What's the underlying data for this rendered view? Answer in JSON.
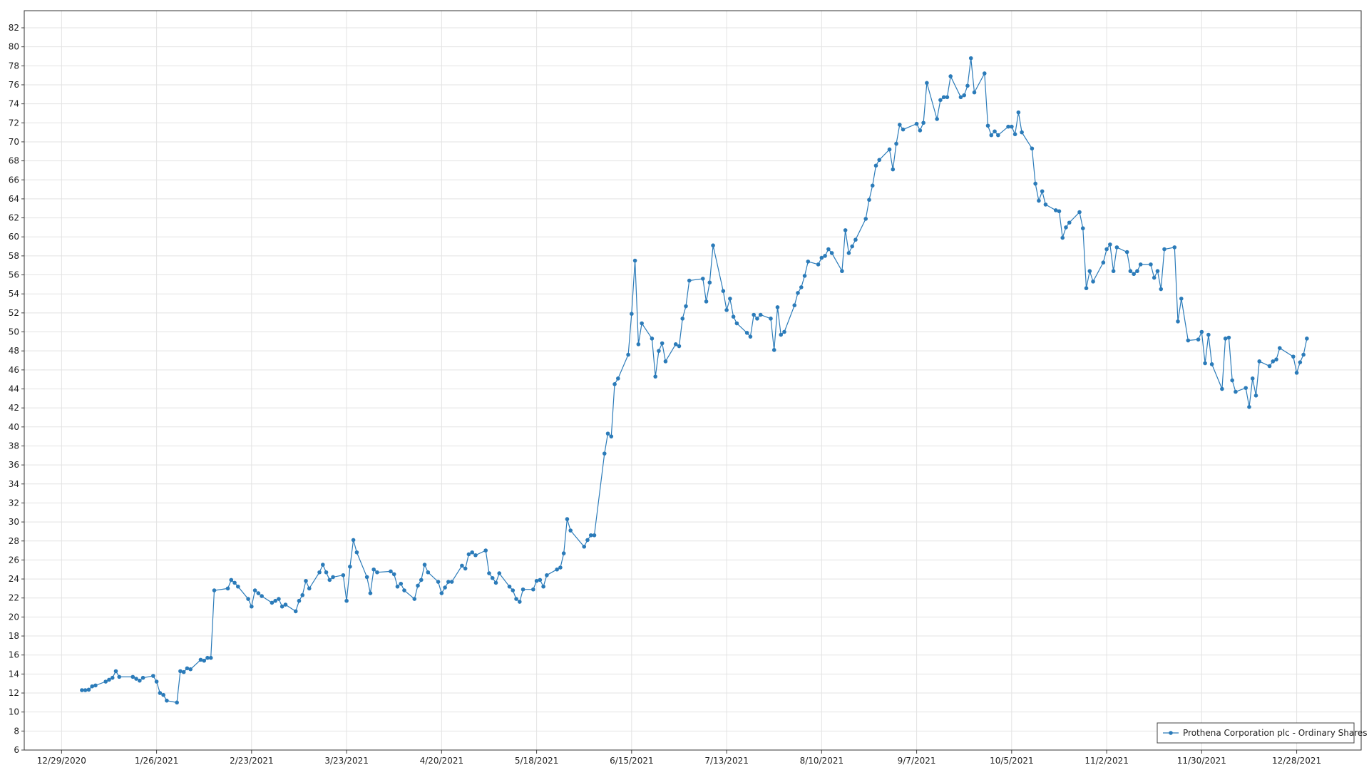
{
  "chart_data": {
    "type": "line",
    "x": [
      "2021-01-04",
      "2021-01-05",
      "2021-01-06",
      "2021-01-07",
      "2021-01-08",
      "2021-01-11",
      "2021-01-12",
      "2021-01-13",
      "2021-01-14",
      "2021-01-15",
      "2021-01-19",
      "2021-01-20",
      "2021-01-21",
      "2021-01-22",
      "2021-01-25",
      "2021-01-26",
      "2021-01-27",
      "2021-01-28",
      "2021-01-29",
      "2021-02-01",
      "2021-02-02",
      "2021-02-03",
      "2021-02-04",
      "2021-02-05",
      "2021-02-08",
      "2021-02-09",
      "2021-02-10",
      "2021-02-11",
      "2021-02-12",
      "2021-02-16",
      "2021-02-17",
      "2021-02-18",
      "2021-02-19",
      "2021-02-22",
      "2021-02-23",
      "2021-02-24",
      "2021-02-25",
      "2021-02-26",
      "2021-03-01",
      "2021-03-02",
      "2021-03-03",
      "2021-03-04",
      "2021-03-05",
      "2021-03-08",
      "2021-03-09",
      "2021-03-10",
      "2021-03-11",
      "2021-03-12",
      "2021-03-15",
      "2021-03-16",
      "2021-03-17",
      "2021-03-18",
      "2021-03-19",
      "2021-03-22",
      "2021-03-23",
      "2021-03-24",
      "2021-03-25",
      "2021-03-26",
      "2021-03-29",
      "2021-03-30",
      "2021-03-31",
      "2021-04-01",
      "2021-04-05",
      "2021-04-06",
      "2021-04-07",
      "2021-04-08",
      "2021-04-09",
      "2021-04-12",
      "2021-04-13",
      "2021-04-14",
      "2021-04-15",
      "2021-04-16",
      "2021-04-19",
      "2021-04-20",
      "2021-04-21",
      "2021-04-22",
      "2021-04-23",
      "2021-04-26",
      "2021-04-27",
      "2021-04-28",
      "2021-04-29",
      "2021-04-30",
      "2021-05-03",
      "2021-05-04",
      "2021-05-05",
      "2021-05-06",
      "2021-05-07",
      "2021-05-10",
      "2021-05-11",
      "2021-05-12",
      "2021-05-13",
      "2021-05-14",
      "2021-05-17",
      "2021-05-18",
      "2021-05-19",
      "2021-05-20",
      "2021-05-21",
      "2021-05-24",
      "2021-05-25",
      "2021-05-26",
      "2021-05-27",
      "2021-05-28",
      "2021-06-01",
      "2021-06-02",
      "2021-06-03",
      "2021-06-04",
      "2021-06-07",
      "2021-06-08",
      "2021-06-09",
      "2021-06-10",
      "2021-06-11",
      "2021-06-14",
      "2021-06-15",
      "2021-06-16",
      "2021-06-17",
      "2021-06-18",
      "2021-06-21",
      "2021-06-22",
      "2021-06-23",
      "2021-06-24",
      "2021-06-25",
      "2021-06-28",
      "2021-06-29",
      "2021-06-30",
      "2021-07-01",
      "2021-07-02",
      "2021-07-06",
      "2021-07-07",
      "2021-07-08",
      "2021-07-09",
      "2021-07-12",
      "2021-07-13",
      "2021-07-14",
      "2021-07-15",
      "2021-07-16",
      "2021-07-19",
      "2021-07-20",
      "2021-07-21",
      "2021-07-22",
      "2021-07-23",
      "2021-07-26",
      "2021-07-27",
      "2021-07-28",
      "2021-07-29",
      "2021-07-30",
      "2021-08-02",
      "2021-08-03",
      "2021-08-04",
      "2021-08-05",
      "2021-08-06",
      "2021-08-09",
      "2021-08-10",
      "2021-08-11",
      "2021-08-12",
      "2021-08-13",
      "2021-08-16",
      "2021-08-17",
      "2021-08-18",
      "2021-08-19",
      "2021-08-20",
      "2021-08-23",
      "2021-08-24",
      "2021-08-25",
      "2021-08-26",
      "2021-08-27",
      "2021-08-30",
      "2021-08-31",
      "2021-09-01",
      "2021-09-02",
      "2021-09-03",
      "2021-09-07",
      "2021-09-08",
      "2021-09-09",
      "2021-09-10",
      "2021-09-13",
      "2021-09-14",
      "2021-09-15",
      "2021-09-16",
      "2021-09-17",
      "2021-09-20",
      "2021-09-21",
      "2021-09-22",
      "2021-09-23",
      "2021-09-24",
      "2021-09-27",
      "2021-09-28",
      "2021-09-29",
      "2021-09-30",
      "2021-10-01",
      "2021-10-04",
      "2021-10-05",
      "2021-10-06",
      "2021-10-07",
      "2021-10-08",
      "2021-10-11",
      "2021-10-12",
      "2021-10-13",
      "2021-10-14",
      "2021-10-15",
      "2021-10-18",
      "2021-10-19",
      "2021-10-20",
      "2021-10-21",
      "2021-10-22",
      "2021-10-25",
      "2021-10-26",
      "2021-10-27",
      "2021-10-28",
      "2021-10-29",
      "2021-11-01",
      "2021-11-02",
      "2021-11-03",
      "2021-11-04",
      "2021-11-05",
      "2021-11-08",
      "2021-11-09",
      "2021-11-10",
      "2021-11-11",
      "2021-11-12",
      "2021-11-15",
      "2021-11-16",
      "2021-11-17",
      "2021-11-18",
      "2021-11-19",
      "2021-11-22",
      "2021-11-23",
      "2021-11-24",
      "2021-11-26",
      "2021-11-29",
      "2021-11-30",
      "2021-12-01",
      "2021-12-02",
      "2021-12-03",
      "2021-12-06",
      "2021-12-07",
      "2021-12-08",
      "2021-12-09",
      "2021-12-10",
      "2021-12-13",
      "2021-12-14",
      "2021-12-15",
      "2021-12-16",
      "2021-12-17",
      "2021-12-20",
      "2021-12-21",
      "2021-12-22",
      "2021-12-23",
      "2021-12-27",
      "2021-12-28",
      "2021-12-29",
      "2021-12-30",
      "2021-12-31"
    ],
    "series": [
      {
        "name": "Prothena Corporation plc - Ordinary Shares",
        "color": "#2b7bb9",
        "values": [
          12.3,
          12.3,
          12.35,
          12.7,
          12.8,
          13.2,
          13.4,
          13.6,
          14.3,
          13.7,
          13.7,
          13.5,
          13.3,
          13.6,
          13.8,
          13.2,
          12.0,
          11.8,
          11.2,
          11.0,
          14.3,
          14.2,
          14.6,
          14.5,
          15.5,
          15.4,
          15.7,
          15.7,
          22.8,
          23.0,
          23.9,
          23.6,
          23.2,
          21.9,
          21.1,
          22.8,
          22.5,
          22.2,
          21.5,
          21.7,
          21.9,
          21.1,
          21.3,
          20.6,
          21.7,
          22.3,
          23.8,
          23.0,
          24.7,
          25.5,
          24.7,
          23.9,
          24.2,
          24.4,
          21.7,
          25.3,
          28.1,
          26.8,
          24.2,
          22.5,
          25.0,
          24.7,
          24.8,
          24.5,
          23.2,
          23.5,
          22.8,
          21.9,
          23.3,
          23.9,
          25.5,
          24.7,
          23.7,
          22.5,
          23.1,
          23.7,
          23.7,
          25.4,
          25.1,
          26.6,
          26.8,
          26.5,
          27.0,
          24.6,
          24.1,
          23.6,
          24.6,
          23.2,
          22.8,
          21.9,
          21.6,
          22.9,
          22.9,
          23.8,
          23.9,
          23.2,
          24.4,
          25.0,
          25.2,
          26.7,
          30.3,
          29.1,
          27.4,
          28.1,
          28.6,
          28.6,
          37.2,
          39.3,
          39.0,
          44.5,
          45.1,
          47.6,
          51.9,
          57.5,
          48.7,
          50.9,
          49.3,
          45.3,
          48.0,
          48.8,
          46.9,
          48.7,
          48.5,
          51.4,
          52.7,
          55.4,
          55.6,
          53.2,
          55.2,
          59.1,
          54.3,
          52.3,
          53.5,
          51.6,
          50.9,
          49.9,
          49.5,
          51.8,
          51.4,
          51.8,
          51.4,
          48.1,
          52.6,
          49.7,
          50.0,
          52.8,
          54.1,
          54.7,
          55.9,
          57.4,
          57.1,
          57.8,
          58.0,
          58.7,
          58.3,
          56.4,
          60.7,
          58.3,
          59.0,
          59.7,
          61.9,
          63.9,
          65.4,
          67.5,
          68.1,
          69.2,
          67.1,
          69.8,
          71.8,
          71.3,
          71.9,
          71.2,
          72.0,
          76.2,
          72.4,
          74.4,
          74.7,
          74.7,
          76.9,
          74.7,
          74.9,
          75.9,
          78.8,
          75.2,
          77.2,
          71.7,
          70.7,
          71.1,
          70.7,
          71.6,
          71.6,
          70.8,
          73.1,
          71.0,
          69.3,
          65.6,
          63.8,
          64.8,
          63.4,
          62.8,
          62.7,
          59.9,
          61.0,
          61.5,
          62.6,
          60.9,
          54.6,
          56.4,
          55.3,
          57.3,
          58.7,
          59.2,
          56.4,
          58.9,
          58.4,
          56.4,
          56.1,
          56.4,
          57.1,
          57.1,
          55.7,
          56.4,
          54.5,
          58.7,
          58.9,
          51.1,
          53.5,
          49.1,
          49.2,
          50.0,
          46.7,
          49.7,
          46.6,
          44.0,
          49.3,
          49.4,
          44.9,
          43.7,
          44.1,
          42.1,
          45.1,
          43.3,
          46.9,
          46.4,
          46.9,
          47.1,
          48.3,
          47.4,
          45.7,
          46.8,
          47.6,
          49.3
        ]
      }
    ],
    "xlim": [
      "2020-12-18",
      "2022-01-16"
    ],
    "xticks": [
      {
        "value": "2020-12-29",
        "label": "12/29/2020"
      },
      {
        "value": "2021-01-26",
        "label": "1/26/2021"
      },
      {
        "value": "2021-02-23",
        "label": "2/23/2021"
      },
      {
        "value": "2021-03-23",
        "label": "3/23/2021"
      },
      {
        "value": "2021-04-20",
        "label": "4/20/2021"
      },
      {
        "value": "2021-05-18",
        "label": "5/18/2021"
      },
      {
        "value": "2021-06-15",
        "label": "6/15/2021"
      },
      {
        "value": "2021-07-13",
        "label": "7/13/2021"
      },
      {
        "value": "2021-08-10",
        "label": "8/10/2021"
      },
      {
        "value": "2021-09-07",
        "label": "9/7/2021"
      },
      {
        "value": "2021-10-05",
        "label": "10/5/2021"
      },
      {
        "value": "2021-11-02",
        "label": "11/2/2021"
      },
      {
        "value": "2021-11-30",
        "label": "11/30/2021"
      },
      {
        "value": "2021-12-28",
        "label": "12/28/2021"
      }
    ],
    "ylim": [
      6,
      83.8
    ],
    "yticks": [
      6,
      8,
      10,
      12,
      14,
      16,
      18,
      20,
      22,
      24,
      26,
      28,
      30,
      32,
      34,
      36,
      38,
      40,
      42,
      44,
      46,
      48,
      50,
      52,
      54,
      56,
      58,
      60,
      62,
      64,
      66,
      68,
      70,
      72,
      74,
      76,
      78,
      80,
      82
    ],
    "grid": true,
    "legend": "lower right"
  }
}
